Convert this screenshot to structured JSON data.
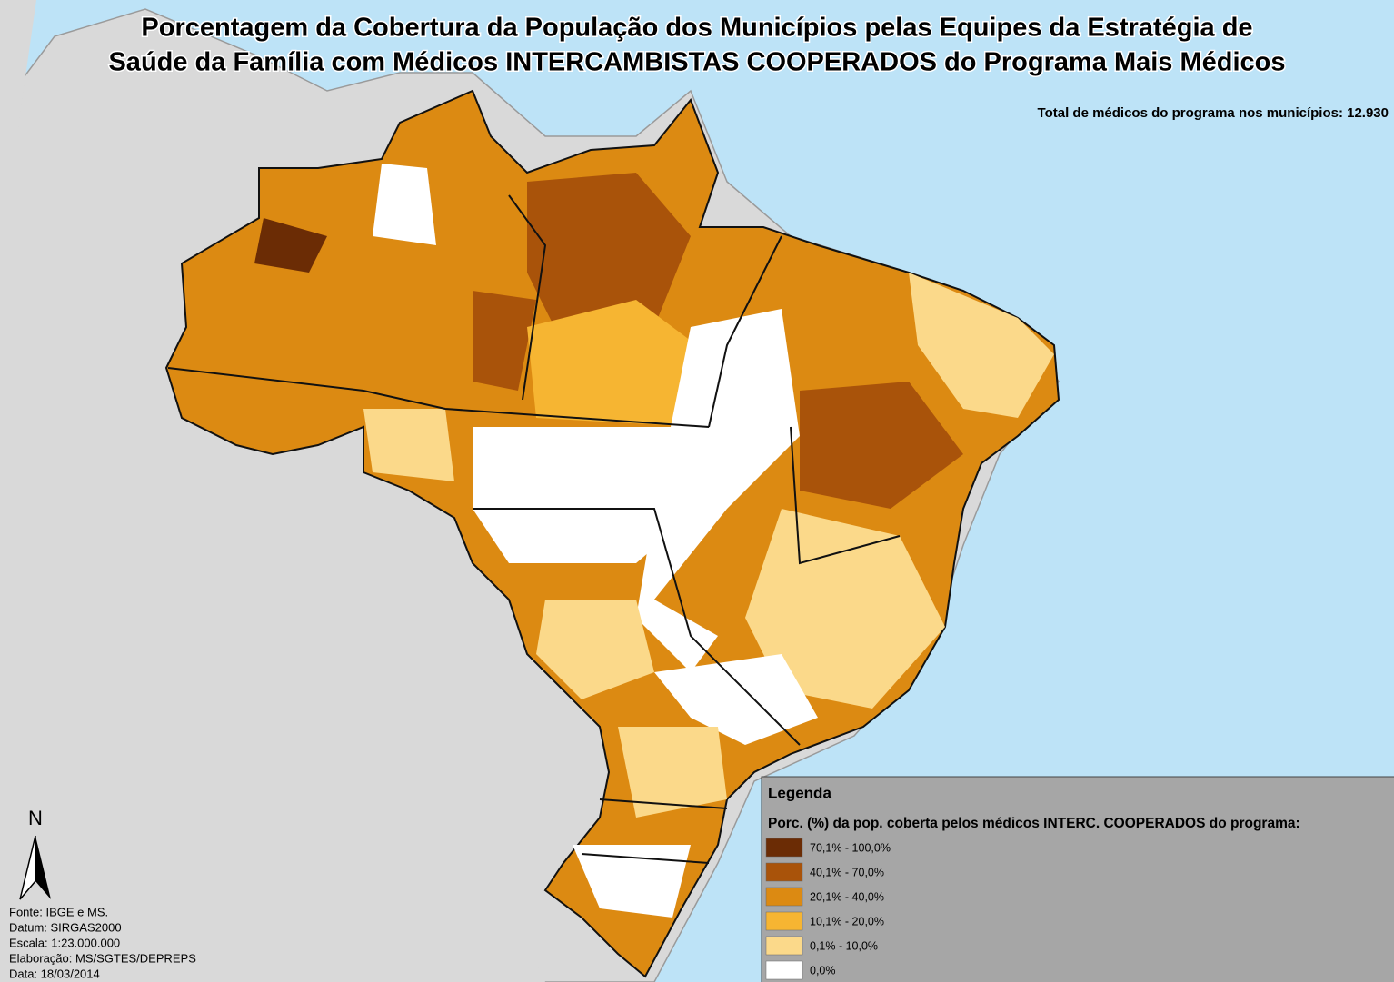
{
  "title": [
    "Porcentagem da Cobertura da População dos Municípios pelas Equipes da Estratégia de",
    "Saúde da Família com Médicos INTERCAMBISTAS COOPERADOS do Programa Mais Médicos"
  ],
  "total_label": "Total de médicos do programa nos municípios: 12.930",
  "north": "N",
  "credits": [
    "Fonte: IBGE e MS.",
    "Datum: SIRGAS2000",
    "Escala: 1:23.000.000",
    "Elaboração: MS/SGTES/DEPREPS",
    "Data: 18/03/2014"
  ],
  "legend": {
    "title": "Legenda",
    "subtitle": "Porc. (%) da pop. coberta pelos médicos INTERC. COOPERADOS do programa:",
    "items": [
      {
        "label": "70,1% - 100,0%",
        "color": "#6b2c05"
      },
      {
        "label": "40,1% - 70,0%",
        "color": "#a9530a"
      },
      {
        "label": "20,1% - 40,0%",
        "color": "#dc8a12"
      },
      {
        "label": "10,1% - 20,0%",
        "color": "#f6b532"
      },
      {
        "label": "0,1% - 10,0%",
        "color": "#fbd98a"
      },
      {
        "label": "0,0%",
        "color": "#ffffff"
      }
    ]
  }
}
